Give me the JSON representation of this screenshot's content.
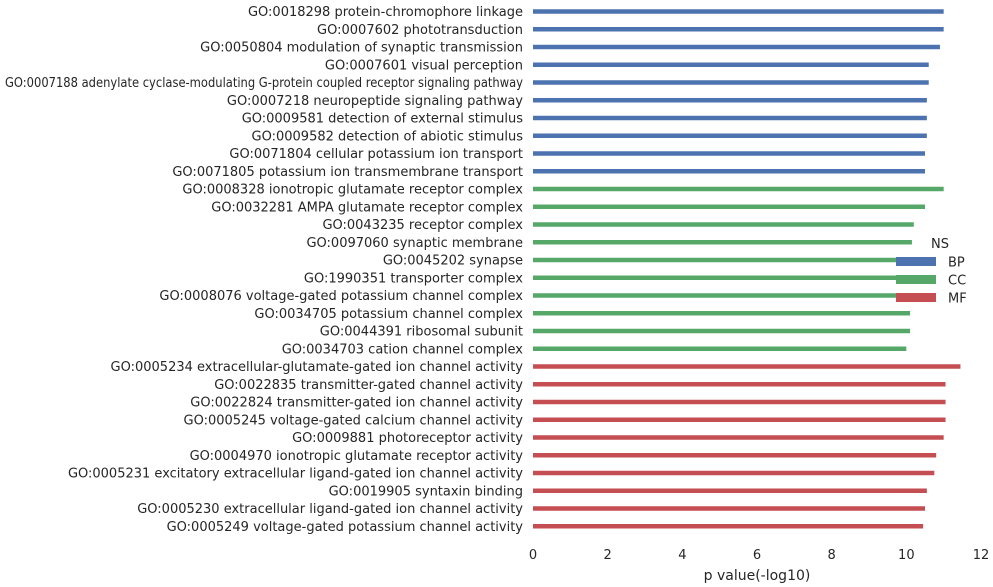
{
  "chart_data": {
    "type": "bar",
    "orientation": "horizontal",
    "xlabel": "p value(-log10)",
    "ylabel": "",
    "title": "",
    "xlim": [
      0,
      12
    ],
    "xticks": [
      "0",
      "2",
      "4",
      "6",
      "8",
      "10",
      "12"
    ],
    "grid": false,
    "legend": {
      "title": "NS",
      "placement": "center-right",
      "entries": [
        {
          "name": "BP",
          "color": "#4c72b0"
        },
        {
          "name": "CC",
          "color": "#55a868"
        },
        {
          "name": "MF",
          "color": "#c44e52"
        }
      ]
    },
    "bars": [
      {
        "label": "GO:0018298 protein-chromophore linkage",
        "group": "BP",
        "value": 11.0
      },
      {
        "label": "GO:0007602 phototransduction",
        "group": "BP",
        "value": 11.0
      },
      {
        "label": "GO:0050804 modulation of synaptic transmission",
        "group": "BP",
        "value": 10.9
      },
      {
        "label": "GO:0007601 visual perception",
        "group": "BP",
        "value": 10.6
      },
      {
        "label": "GO:0007188 adenylate cyclase-modulating G-protein coupled receptor signaling pathway",
        "group": "BP",
        "value": 10.6
      },
      {
        "label": "GO:0007218 neuropeptide signaling pathway",
        "group": "BP",
        "value": 10.55
      },
      {
        "label": "GO:0009581 detection of external stimulus",
        "group": "BP",
        "value": 10.55
      },
      {
        "label": "GO:0009582 detection of abiotic stimulus",
        "group": "BP",
        "value": 10.55
      },
      {
        "label": "GO:0071804 cellular potassium ion transport",
        "group": "BP",
        "value": 10.5
      },
      {
        "label": "GO:0071805 potassium ion transmembrane transport",
        "group": "BP",
        "value": 10.5
      },
      {
        "label": "GO:0008328 ionotropic glutamate receptor complex",
        "group": "CC",
        "value": 11.0
      },
      {
        "label": "GO:0032281 AMPA glutamate receptor complex",
        "group": "CC",
        "value": 10.5
      },
      {
        "label": "GO:0043235 receptor complex",
        "group": "CC",
        "value": 10.2
      },
      {
        "label": "GO:0097060 synaptic membrane",
        "group": "CC",
        "value": 10.15
      },
      {
        "label": "GO:0045202 synapse",
        "group": "CC",
        "value": 10.1
      },
      {
        "label": "GO:1990351 transporter complex",
        "group": "CC",
        "value": 10.1
      },
      {
        "label": "GO:0008076 voltage-gated potassium channel complex",
        "group": "CC",
        "value": 10.1
      },
      {
        "label": "GO:0034705 potassium channel complex",
        "group": "CC",
        "value": 10.1
      },
      {
        "label": "GO:0044391 ribosomal subunit",
        "group": "CC",
        "value": 10.1
      },
      {
        "label": "GO:0034703 cation channel complex",
        "group": "CC",
        "value": 10.0
      },
      {
        "label": "GO:0005234 extracellular-glutamate-gated ion channel activity",
        "group": "MF",
        "value": 11.45
      },
      {
        "label": "GO:0022835 transmitter-gated channel activity",
        "group": "MF",
        "value": 11.05
      },
      {
        "label": "GO:0022824 transmitter-gated ion channel activity",
        "group": "MF",
        "value": 11.05
      },
      {
        "label": "GO:0005245 voltage-gated calcium channel activity",
        "group": "MF",
        "value": 11.05
      },
      {
        "label": "GO:0009881 photoreceptor activity",
        "group": "MF",
        "value": 11.0
      },
      {
        "label": "GO:0004970 ionotropic glutamate receptor activity",
        "group": "MF",
        "value": 10.8
      },
      {
        "label": "GO:0005231 excitatory extracellular ligand-gated ion channel activity",
        "group": "MF",
        "value": 10.75
      },
      {
        "label": "GO:0019905 syntaxin binding",
        "group": "MF",
        "value": 10.55
      },
      {
        "label": "GO:0005230 extracellular ligand-gated ion channel activity",
        "group": "MF",
        "value": 10.5
      },
      {
        "label": "GO:0005249 voltage-gated potassium channel activity",
        "group": "MF",
        "value": 10.45
      }
    ]
  }
}
